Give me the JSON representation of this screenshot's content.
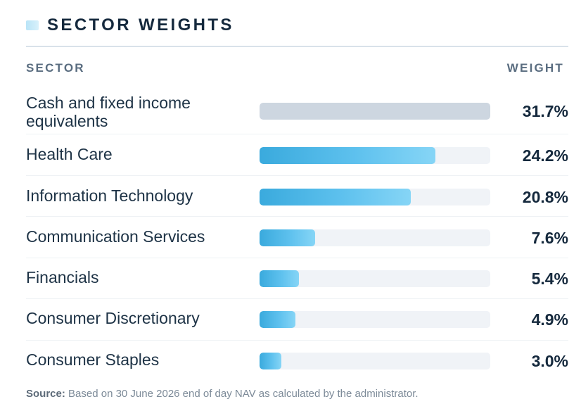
{
  "header": {
    "title": "SECTOR WEIGHTS",
    "col_sector": "SECTOR",
    "col_weight": "WEIGHT"
  },
  "chart_data": {
    "type": "bar",
    "orientation": "horizontal",
    "title": "SECTOR WEIGHTS",
    "categories": [
      "Cash and fixed income equivalents",
      "Health Care",
      "Information Technology",
      "Communication Services",
      "Financials",
      "Consumer Discretionary",
      "Consumer Staples"
    ],
    "values": [
      31.7,
      24.2,
      20.8,
      7.6,
      5.4,
      4.9,
      3.0
    ],
    "value_labels": [
      "31.7%",
      "24.2%",
      "20.8%",
      "7.6%",
      "5.4%",
      "4.9%",
      "3.0%"
    ],
    "xlim": [
      0,
      31.7
    ],
    "colors": {
      "bar": "#4bb6e6",
      "cash_bar": "#cdd6e0",
      "track": "#f0f3f7"
    }
  },
  "footer": {
    "source_label": "Source:",
    "source_text": "Based on 30 June 2026 end of day NAV as calculated by the administrator."
  }
}
